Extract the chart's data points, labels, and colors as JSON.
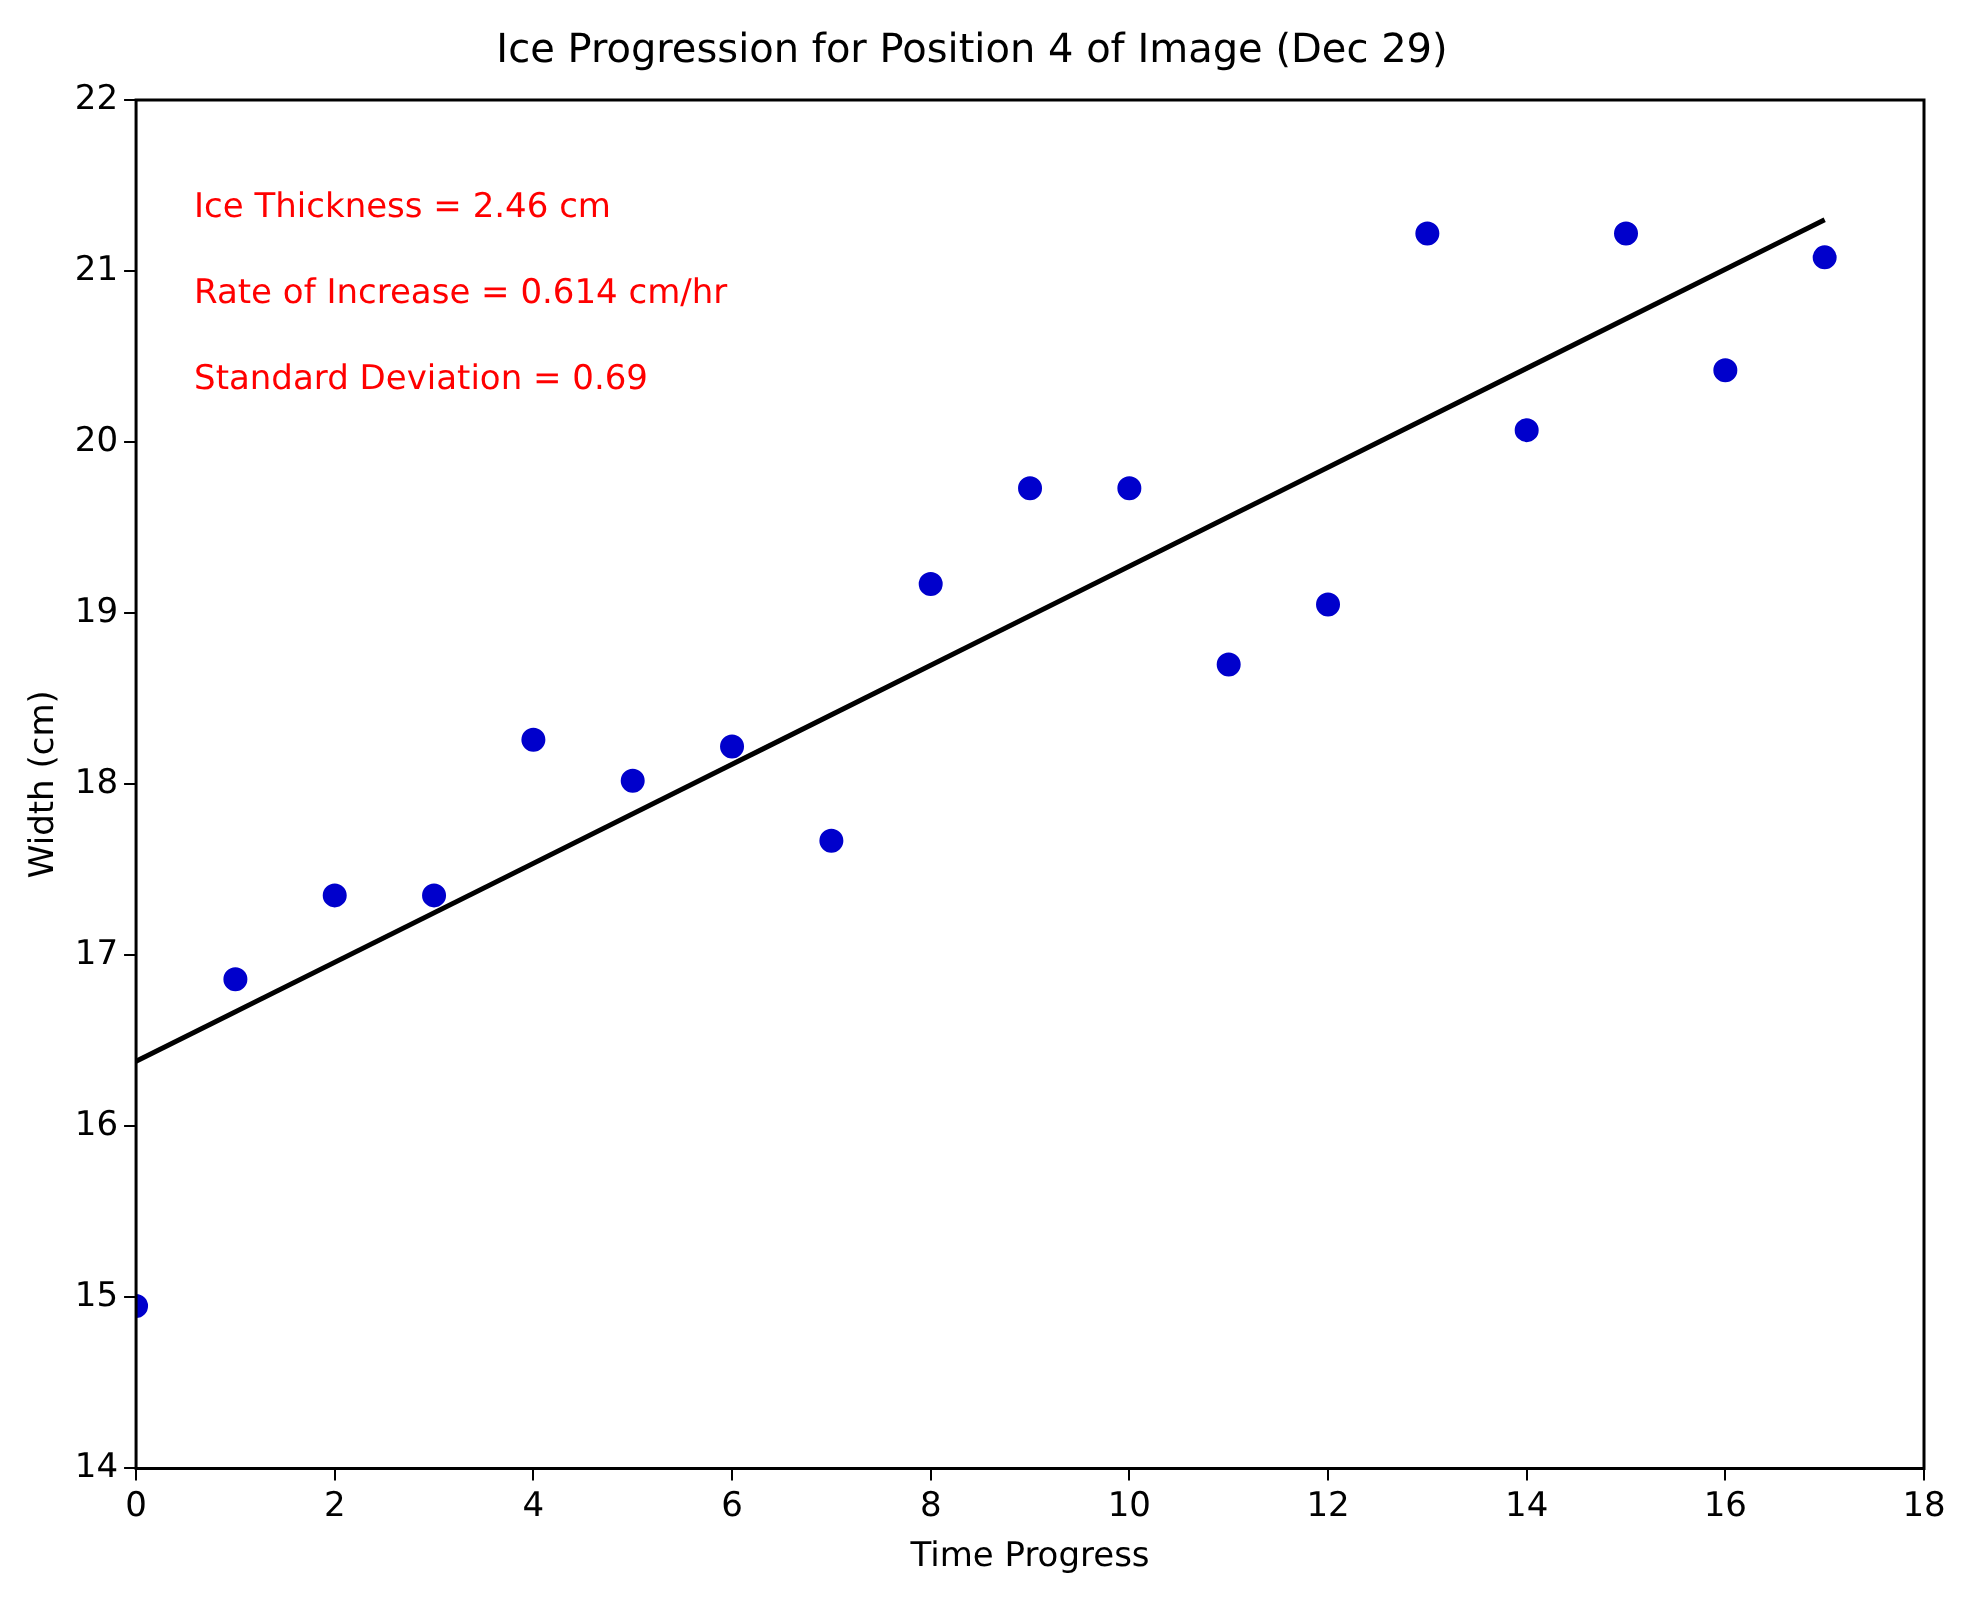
{
  "chart_data": {
    "type": "scatter",
    "title": "Ice Progression for Position 4 of Image (Dec 29)",
    "xlabel": "Time Progress",
    "ylabel": "Width (cm)",
    "annotations": [
      "Ice Thickness = 2.46 cm",
      "Rate of Increase = 0.614 cm/hr",
      "Standard Deviation = 0.69"
    ],
    "x": [
      0,
      1,
      2,
      3,
      4,
      5,
      6,
      7,
      8,
      9,
      10,
      11,
      12,
      13,
      14,
      15,
      16,
      17
    ],
    "series": [
      {
        "type": "scatter",
        "color": "#0000cc",
        "marker": "circle",
        "values": [
          14.95,
          16.86,
          17.35,
          17.35,
          18.26,
          18.02,
          18.22,
          17.67,
          19.17,
          19.73,
          19.73,
          18.7,
          19.05,
          21.22,
          20.07,
          21.22,
          20.42,
          21.08
        ]
      },
      {
        "type": "line",
        "color": "#000000",
        "marker": "none",
        "line_style": "solid",
        "x": [
          0,
          17
        ],
        "values": [
          16.38,
          21.3
        ]
      }
    ],
    "xlim": [
      0,
      18
    ],
    "xticks": [
      0,
      2,
      4,
      6,
      8,
      10,
      12,
      14,
      16,
      18
    ],
    "ylim": [
      14,
      22
    ],
    "yticks": [
      14,
      15,
      16,
      17,
      18,
      19,
      20,
      21,
      22
    ],
    "grid": false,
    "legend": false
  }
}
